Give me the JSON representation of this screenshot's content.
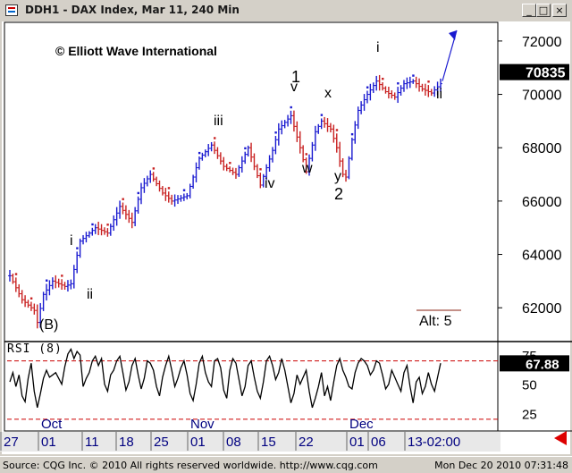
{
  "window": {
    "title": "DDH1 - DAX Index, Mar 11, 240 Min",
    "minimize_glyph": "_",
    "restore_glyph": "□",
    "close_glyph": "×"
  },
  "watermark": "© Elliott Wave International",
  "chart_data": {
    "type": "bar",
    "instrument": "DAX Index",
    "interval": "240 Min",
    "y_ticks": [
      62000,
      64000,
      66000,
      68000,
      70000,
      72000
    ],
    "ylim": [
      60800,
      72700
    ],
    "last_price_label": "70835",
    "price_anchors": [
      [
        0,
        63200
      ],
      [
        4,
        62300
      ],
      [
        8,
        61900
      ],
      [
        9,
        61450
      ],
      [
        11,
        62500
      ],
      [
        14,
        63000
      ],
      [
        18,
        62800
      ],
      [
        20,
        62900
      ],
      [
        23,
        64500
      ],
      [
        28,
        65000
      ],
      [
        32,
        64800
      ],
      [
        36,
        65800
      ],
      [
        40,
        65200
      ],
      [
        43,
        66500
      ],
      [
        46,
        67000
      ],
      [
        50,
        66300
      ],
      [
        53,
        66000
      ],
      [
        58,
        66200
      ],
      [
        62,
        67600
      ],
      [
        66,
        68100
      ],
      [
        70,
        67300
      ],
      [
        74,
        67000
      ],
      [
        78,
        68000
      ],
      [
        82,
        66600
      ],
      [
        86,
        67900
      ],
      [
        88,
        68700
      ],
      [
        92,
        69200
      ],
      [
        95,
        68000
      ],
      [
        97,
        67100
      ],
      [
        100,
        68600
      ],
      [
        102,
        69000
      ],
      [
        105,
        68700
      ],
      [
        107,
        68000
      ],
      [
        109,
        67000
      ],
      [
        110,
        66900
      ],
      [
        112,
        68300
      ],
      [
        114,
        69400
      ],
      [
        117,
        70000
      ],
      [
        120,
        70500
      ],
      [
        123,
        70100
      ],
      [
        126,
        69900
      ],
      [
        129,
        70400
      ],
      [
        132,
        70500
      ],
      [
        135,
        70200
      ],
      [
        138,
        70050
      ],
      [
        141,
        70400
      ]
    ],
    "projection_arrow": "blue arrow pointing up",
    "wave_labels": [
      "(B)",
      "i",
      "ii",
      "iii",
      "iv",
      "1",
      "v",
      "w",
      "x",
      "y",
      "2",
      "i",
      "ii"
    ],
    "alt_label": "Alt: 5",
    "indicator": {
      "name": "RSI (8)",
      "y_ticks": [
        25,
        50,
        75
      ],
      "levels": [
        20,
        70
      ],
      "last_value_label": "67.88",
      "values": [
        52,
        60,
        48,
        58,
        40,
        35,
        55,
        68,
        44,
        30,
        42,
        55,
        62,
        56,
        58,
        60,
        55,
        50,
        65,
        76,
        80,
        72,
        78,
        75,
        48,
        55,
        60,
        70,
        74,
        66,
        72,
        50,
        44,
        58,
        62,
        70,
        74,
        60,
        45,
        52,
        66,
        72,
        58,
        46,
        55,
        70,
        68,
        62,
        48,
        40,
        56,
        66,
        74,
        62,
        48,
        55,
        64,
        70,
        58,
        42,
        36,
        50,
        68,
        74,
        60,
        52,
        48,
        70,
        72,
        64,
        45,
        38,
        62,
        72,
        68,
        54,
        40,
        48,
        66,
        70,
        56,
        44,
        38,
        52,
        70,
        74,
        66,
        54,
        60,
        72,
        62,
        48,
        34,
        42,
        58,
        50,
        56,
        62,
        44,
        30,
        38,
        48,
        60,
        40,
        48,
        36,
        52,
        66,
        72,
        62,
        56,
        48,
        46,
        60,
        68,
        72,
        70,
        66,
        58,
        62,
        70,
        68,
        58,
        46,
        50,
        62,
        56,
        50,
        44,
        60,
        66,
        48,
        34,
        52,
        56,
        42,
        48,
        60,
        50,
        44,
        56,
        68
      ]
    },
    "month_labels": [
      "Oct",
      "Nov",
      "Dec"
    ],
    "x_ticks": [
      "27",
      "01",
      "11",
      "18",
      "25",
      "01",
      "08",
      "15",
      "22",
      "01",
      "06",
      "13-02:00"
    ]
  },
  "statusbar": {
    "left": "Source: CQG Inc. © 2010 All rights reserved worldwide. http://www.cqg.com",
    "right": "Mon Dec 20 2010 07:31:48"
  }
}
